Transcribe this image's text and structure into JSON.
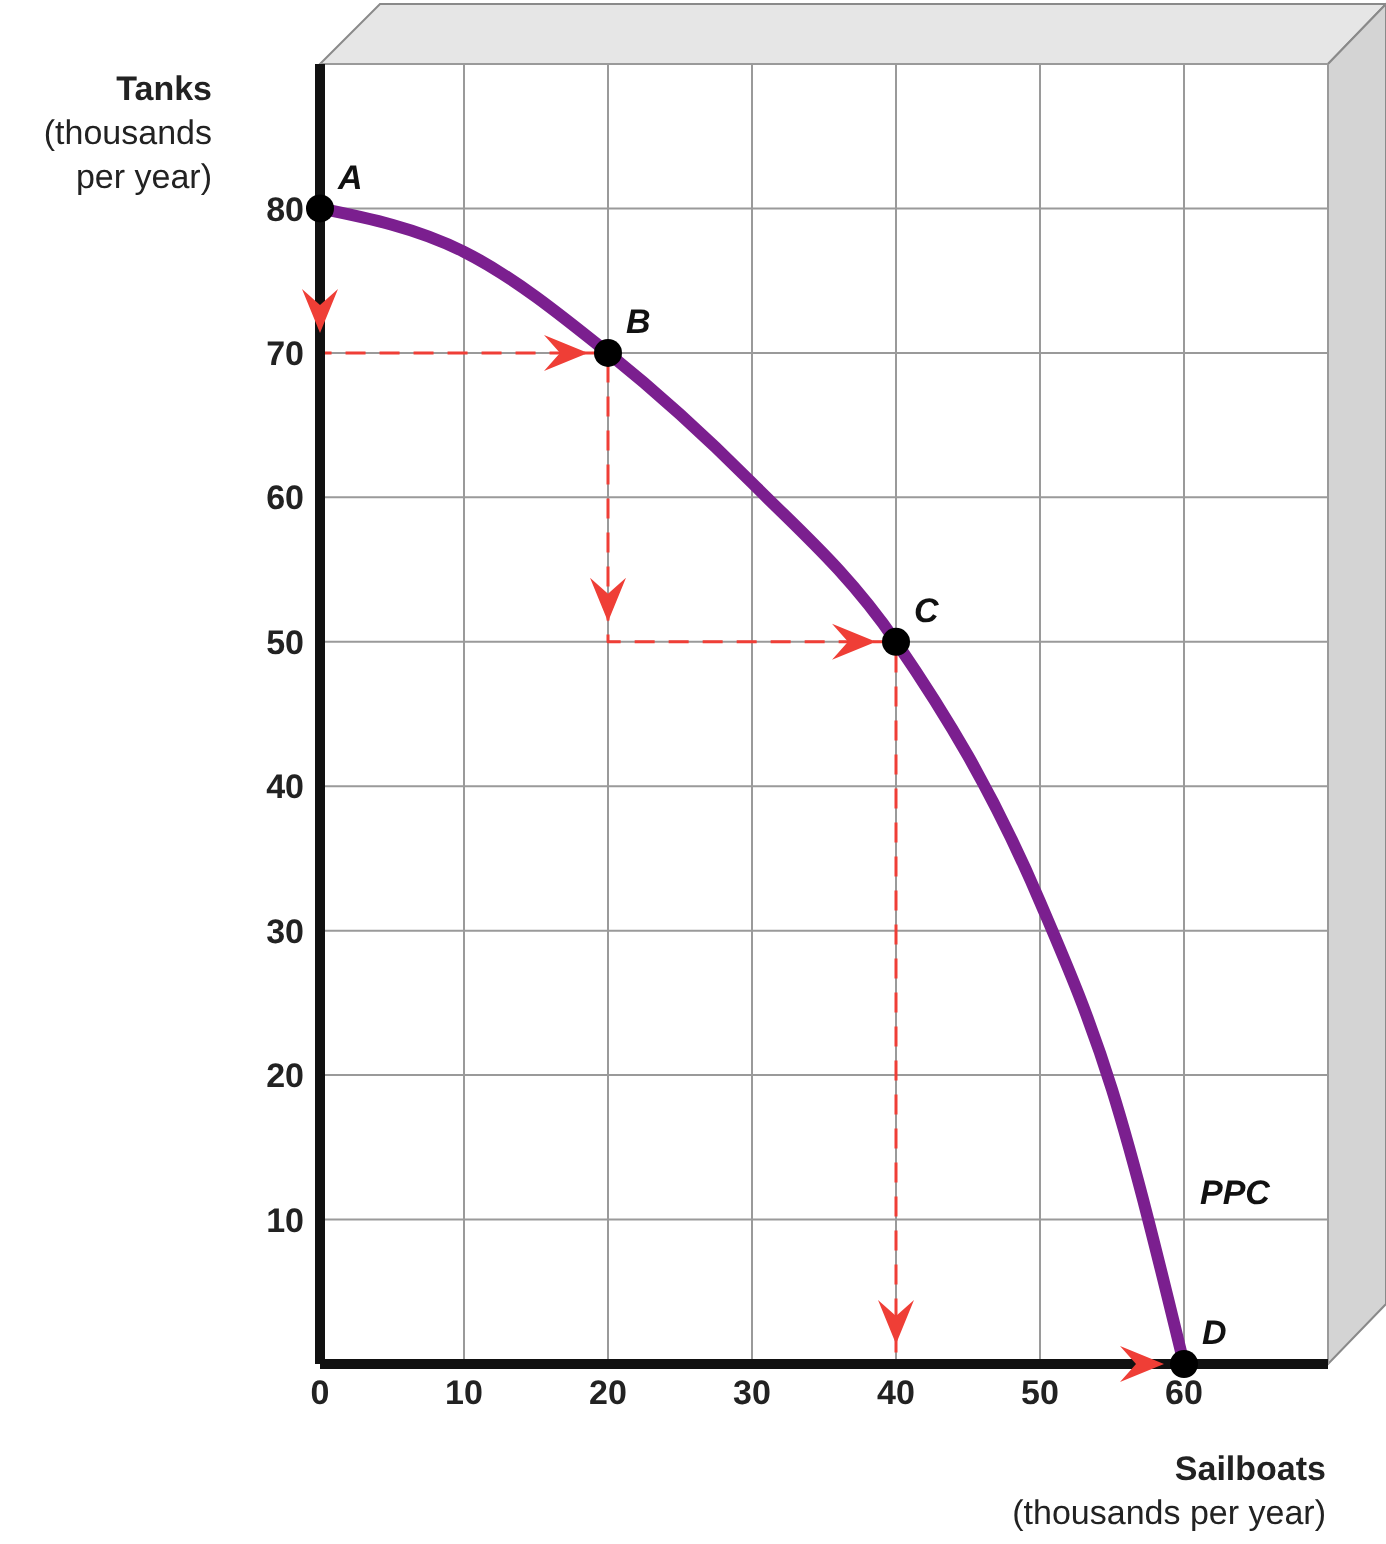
{
  "chart_data": {
    "type": "line",
    "xlabel": "Sailboats (thousands per year)",
    "ylabel": "Tanks (thousands per year)",
    "xlim": [
      0,
      70
    ],
    "ylim": [
      0,
      90
    ],
    "xticks": [
      0,
      10,
      20,
      30,
      40,
      50,
      60,
      {
        "value": 70,
        "label": null
      }
    ],
    "yticks": [
      10,
      20,
      30,
      40,
      50,
      60,
      70,
      80,
      {
        "value": 90,
        "label": null
      }
    ],
    "grid": true,
    "tick_labels": "xy",
    "series": [
      {
        "color": "#7b1f8f",
        "x": [
          0,
          10,
          20,
          30,
          40,
          50,
          55,
          60
        ],
        "values": [
          80,
          77,
          70,
          61,
          50,
          32,
          19,
          0
        ],
        "marker": "none",
        "line_style": "solid"
      },
      {
        "color": "#ef3e36",
        "x": [
          0,
          0,
          20,
          20,
          40,
          40,
          60
        ],
        "values": [
          80,
          70,
          70,
          50,
          50,
          0,
          0
        ],
        "line_style": "dashed"
      },
      {
        "type": "scatter",
        "color": "#000000",
        "x": [
          0,
          20,
          40,
          60
        ],
        "values": [
          80,
          70,
          50,
          0
        ],
        "marker": "circle"
      }
    ],
    "annotations": [
      {
        "text": "A",
        "x": 0,
        "y": 80
      },
      {
        "text": "B",
        "x": 20,
        "y": 70
      },
      {
        "text": "C",
        "x": 40,
        "y": 50
      },
      {
        "text": "D",
        "x": 60,
        "y": 0
      },
      "PPC"
    ]
  }
}
